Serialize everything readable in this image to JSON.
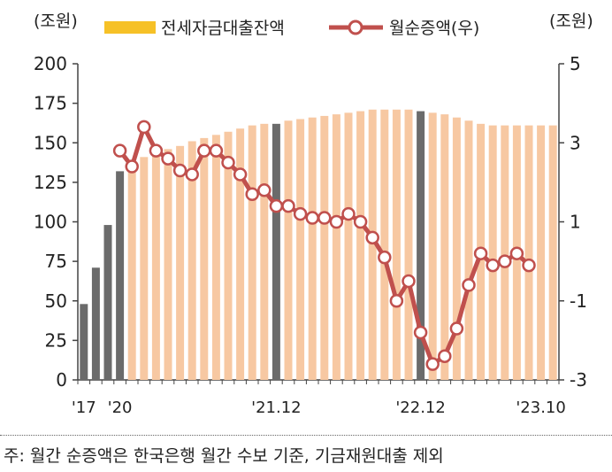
{
  "chart_data": {
    "type": "bar",
    "y_left_unit": "(조원)",
    "y_right_unit": "(조원)",
    "ylim_left": [
      0,
      200
    ],
    "yticks_left": [
      "0",
      "25",
      "50",
      "75",
      "100",
      "125",
      "150",
      "175",
      "200"
    ],
    "ylim_right": [
      -3,
      5
    ],
    "yticks_right": [
      "-3",
      "-1",
      "1",
      "3",
      "5"
    ],
    "x_tick_labels": [
      "'17",
      "'20",
      "'21.12",
      "'22.12",
      "'23.10"
    ],
    "x_tick_label_index": [
      0,
      3,
      16,
      28,
      38
    ],
    "legend": {
      "placement": "top"
    },
    "colors": {
      "bar_light": "#f7c8a2",
      "bar_dark": "#6b6b6b",
      "line": "#c0504d",
      "marker_fill": "#ffffff",
      "legend_bar": "#f6c127"
    },
    "series": [
      {
        "name": "전세자금대출잔액",
        "axis": "left",
        "type": "bar",
        "highlight_index": [
          0,
          1,
          2,
          3,
          16,
          28
        ],
        "values": [
          48,
          71,
          98,
          132,
          137,
          141,
          144,
          146,
          148,
          151,
          153,
          155,
          157,
          159,
          161,
          162,
          162,
          164,
          165,
          166,
          167,
          168,
          169,
          170,
          171,
          171,
          171,
          171,
          170,
          169,
          168,
          166,
          164,
          162,
          161,
          161,
          161,
          161,
          161,
          161
        ]
      },
      {
        "name": "월순증액(우)",
        "axis": "right",
        "type": "line",
        "start_index": 3,
        "values": [
          2.8,
          2.4,
          3.4,
          2.8,
          2.6,
          2.3,
          2.2,
          2.8,
          2.8,
          2.5,
          2.2,
          1.7,
          1.8,
          1.4,
          1.4,
          1.2,
          1.1,
          1.1,
          1.0,
          1.2,
          1.0,
          0.6,
          0.1,
          -1.0,
          -0.5,
          -1.8,
          -2.6,
          -2.4,
          -1.7,
          -0.6,
          0.2,
          -0.1,
          0.0,
          0.2,
          -0.1
        ]
      }
    ]
  },
  "footnote": "주: 월간 순증액은 한국은행 월간 수보 기준, 기금재원대출 제외"
}
